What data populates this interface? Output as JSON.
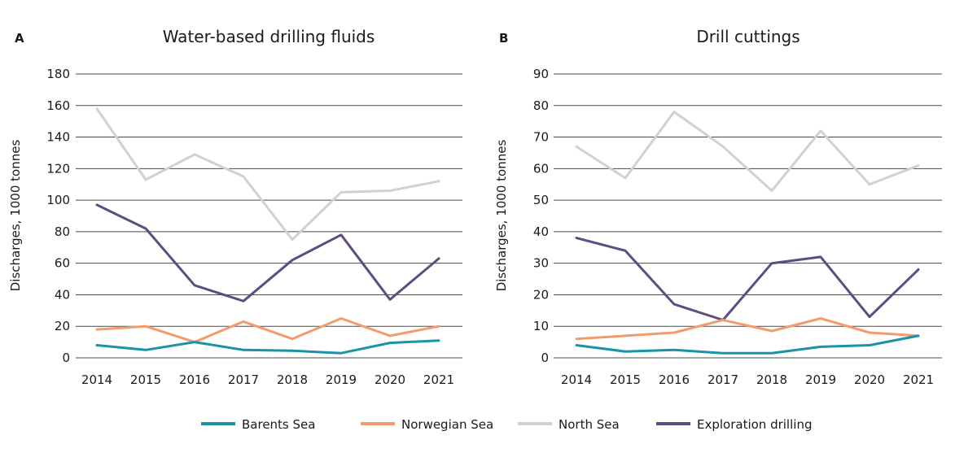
{
  "chart_data": [
    {
      "type": "line",
      "panel": "A",
      "title": "Water-based drilling fluids",
      "ylabel": "Discharges, 1000 tonnes",
      "xlabel": "",
      "ylim": [
        0,
        180
      ],
      "yticks": [
        0,
        20,
        40,
        60,
        80,
        100,
        120,
        140,
        160,
        180
      ],
      "categories": [
        "2014",
        "2015",
        "2016",
        "2017",
        "2018",
        "2019",
        "2020",
        "2021"
      ],
      "series": [
        {
          "name": "Barents Sea",
          "values": [
            8,
            5,
            10,
            5,
            4.5,
            3,
            9.5,
            11
          ]
        },
        {
          "name": "Norwegian Sea",
          "values": [
            18,
            20,
            10,
            23,
            12,
            25,
            14,
            20
          ]
        },
        {
          "name": "North Sea",
          "values": [
            158,
            113,
            129,
            115,
            75,
            105,
            106,
            112
          ]
        },
        {
          "name": "Exploration drilling",
          "values": [
            97,
            82,
            46,
            36,
            62,
            78,
            37,
            63
          ]
        }
      ]
    },
    {
      "type": "line",
      "panel": "B",
      "title": "Drill cuttings",
      "ylabel": "Discharges, 1000 tonnes",
      "xlabel": "",
      "ylim": [
        0,
        90
      ],
      "yticks": [
        0,
        10,
        20,
        30,
        40,
        50,
        60,
        70,
        80,
        90
      ],
      "categories": [
        "2014",
        "2015",
        "2016",
        "2017",
        "2018",
        "2019",
        "2020",
        "2021"
      ],
      "series": [
        {
          "name": "Barents Sea",
          "values": [
            4,
            2,
            2.5,
            1.5,
            1.5,
            3.5,
            4,
            7
          ]
        },
        {
          "name": "Norwegian Sea",
          "values": [
            6,
            7,
            8,
            12,
            8.5,
            12.5,
            8,
            7
          ]
        },
        {
          "name": "North Sea",
          "values": [
            67,
            57,
            78,
            67,
            53,
            72,
            55,
            61
          ]
        },
        {
          "name": "Exploration drilling",
          "values": [
            38,
            34,
            17,
            12,
            30,
            32,
            13,
            28
          ]
        }
      ]
    }
  ],
  "legend": [
    {
      "name": "Barents Sea",
      "color": "#1a93a6"
    },
    {
      "name": "Norwegian Sea",
      "color": "#f29b6e"
    },
    {
      "name": "North Sea",
      "color": "#d3d0d0"
    },
    {
      "name": "Exploration drilling",
      "color": "#5f4c80"
    }
  ]
}
